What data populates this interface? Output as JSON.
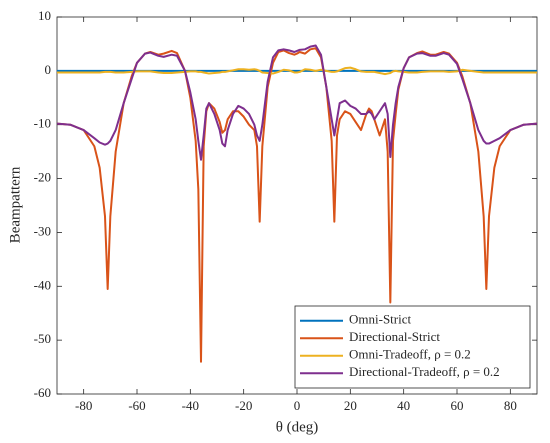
{
  "chart_data": {
    "type": "line",
    "xlabel": "θ (deg)",
    "ylabel": "Beampattern",
    "xlim": [
      -90,
      90
    ],
    "xticks": [
      -80,
      -60,
      -40,
      -20,
      0,
      20,
      40,
      60,
      80
    ],
    "ylim": [
      -60,
      10
    ],
    "yticks": [
      -60,
      -50,
      -40,
      -30,
      -20,
      -10,
      0,
      10
    ],
    "grid": false,
    "legend": "lower right",
    "x": [
      -90,
      -85,
      -80,
      -76,
      -74,
      -72,
      -71,
      -70,
      -68,
      -65,
      -62,
      -60,
      -57,
      -55,
      -52,
      -50,
      -47,
      -45,
      -42,
      -40,
      -38,
      -37,
      -36,
      -35,
      -34,
      -33,
      -31,
      -29,
      -28,
      -27,
      -26,
      -24,
      -22,
      -20,
      -18,
      -16,
      -15,
      -14,
      -13,
      -11,
      -9,
      -7,
      -5,
      -3,
      -1,
      0,
      1,
      3,
      5,
      7,
      9,
      11,
      13,
      14,
      15,
      16,
      18,
      20,
      22,
      24,
      26,
      27,
      28,
      29,
      31,
      33,
      34,
      35,
      36,
      37,
      38,
      40,
      42,
      45,
      47,
      50,
      52,
      55,
      57,
      60,
      62,
      65,
      68,
      70,
      71,
      72,
      74,
      76,
      80,
      85,
      90
    ],
    "series": [
      {
        "name": "Omni-Strict",
        "color": "#0072BD",
        "values": [
          0,
          0,
          0,
          0,
          0,
          0,
          0,
          0,
          0,
          0,
          0,
          0,
          0,
          0,
          0,
          0,
          0,
          0,
          0,
          0,
          0,
          0,
          0,
          0,
          0,
          0,
          0,
          0,
          0,
          0,
          0,
          0,
          0,
          0,
          0,
          0,
          0,
          0,
          0,
          0,
          0,
          0,
          0,
          0,
          0,
          0,
          0,
          0,
          0,
          0,
          0,
          0,
          0,
          0,
          0,
          0,
          0,
          0,
          0,
          0,
          0,
          0,
          0,
          0,
          0,
          0,
          0,
          0,
          0,
          0,
          0,
          0,
          0,
          0,
          0,
          0,
          0,
          0,
          0,
          0,
          0,
          0,
          0,
          0,
          0,
          0,
          0,
          0,
          0,
          0,
          0
        ]
      },
      {
        "name": "Directional-Strict",
        "color": "#D95319",
        "values": [
          -9.8,
          -10,
          -11,
          -14,
          -18,
          -27,
          -40.5,
          -27,
          -15,
          -6,
          -1,
          1.5,
          3.2,
          3.5,
          3,
          3.2,
          3.7,
          3.3,
          0,
          -5,
          -13,
          -22,
          -54,
          -14,
          -7.5,
          -6,
          -7,
          -9.5,
          -11.5,
          -11,
          -9,
          -7.5,
          -7.5,
          -8.5,
          -10,
          -11,
          -14,
          -28,
          -14,
          -3,
          1.5,
          3.5,
          3.8,
          3.3,
          3,
          3.2,
          3.5,
          3.2,
          4,
          4.2,
          2.5,
          -3,
          -13,
          -28,
          -12,
          -9,
          -7.5,
          -8,
          -9.5,
          -11,
          -8,
          -7,
          -7.5,
          -9,
          -12,
          -9,
          -15,
          -43,
          -13,
          -8,
          -3.5,
          0.5,
          2.5,
          3.3,
          3.6,
          3,
          3,
          3.5,
          3.2,
          1.5,
          -1,
          -6,
          -15,
          -27,
          -40.5,
          -27,
          -18,
          -14,
          -11,
          -10,
          -9.8
        ]
      },
      {
        "name": "Omni-Tradeoff, ρ = 0.2",
        "color": "#EDB120",
        "values": [
          -0.3,
          -0.3,
          -0.3,
          -0.3,
          -0.3,
          -0.2,
          -0.2,
          -0.2,
          -0.3,
          -0.3,
          -0.2,
          -0.1,
          -0.1,
          -0.1,
          -0.3,
          -0.4,
          -0.4,
          -0.3,
          -0.2,
          -0.1,
          -0.1,
          -0.2,
          -0.2,
          -0.3,
          -0.4,
          -0.5,
          -0.4,
          -0.3,
          -0.2,
          -0.2,
          -0.1,
          0.1,
          0.3,
          0.3,
          0.2,
          0.3,
          0.2,
          0,
          -0.3,
          -0.4,
          -0.5,
          -0.2,
          0.2,
          0.1,
          -0.3,
          -0.3,
          -0.2,
          0.3,
          0.2,
          0,
          0.2,
          0,
          -0.2,
          -0.2,
          -0.1,
          0.1,
          0.5,
          0.6,
          0.3,
          -0.1,
          -0.2,
          -0.2,
          -0.2,
          -0.2,
          -0.4,
          -0.6,
          -0.5,
          -0.4,
          -0.1,
          0,
          -0.1,
          -0.2,
          -0.3,
          -0.3,
          -0.2,
          -0.1,
          -0.1,
          -0.1,
          -0.2,
          -0.1,
          0.2,
          0,
          -0.2,
          -0.3,
          -0.3,
          -0.3,
          -0.3,
          -0.3,
          -0.3,
          -0.3,
          -0.3
        ]
      },
      {
        "name": "Directional-Tradeoff, ρ = 0.2",
        "color": "#7E2F8E",
        "values": [
          -9.8,
          -10,
          -11,
          -12.5,
          -13.3,
          -13.7,
          -13.5,
          -13,
          -11,
          -6,
          -1.5,
          1.5,
          3.2,
          3.4,
          2.8,
          2.6,
          3,
          2.8,
          0,
          -4,
          -9,
          -13,
          -16.5,
          -12,
          -7,
          -6,
          -8,
          -11,
          -13.5,
          -14,
          -11,
          -8,
          -6.5,
          -7,
          -8,
          -10,
          -12,
          -13,
          -10,
          -2,
          2.5,
          3.8,
          4,
          3.8,
          3.5,
          3.7,
          3.9,
          4,
          4.5,
          4.7,
          3,
          -3,
          -9,
          -12,
          -9,
          -6,
          -5.5,
          -6.5,
          -7,
          -8,
          -8,
          -7.5,
          -8,
          -9,
          -7.5,
          -6,
          -8,
          -16,
          -10,
          -6,
          -3,
          0.5,
          2.5,
          3.2,
          3.3,
          2.8,
          2.8,
          3.3,
          3,
          1.3,
          -1.5,
          -6,
          -11,
          -13,
          -13.5,
          -13.5,
          -13,
          -12.5,
          -11,
          -10,
          -9.8
        ]
      }
    ]
  }
}
